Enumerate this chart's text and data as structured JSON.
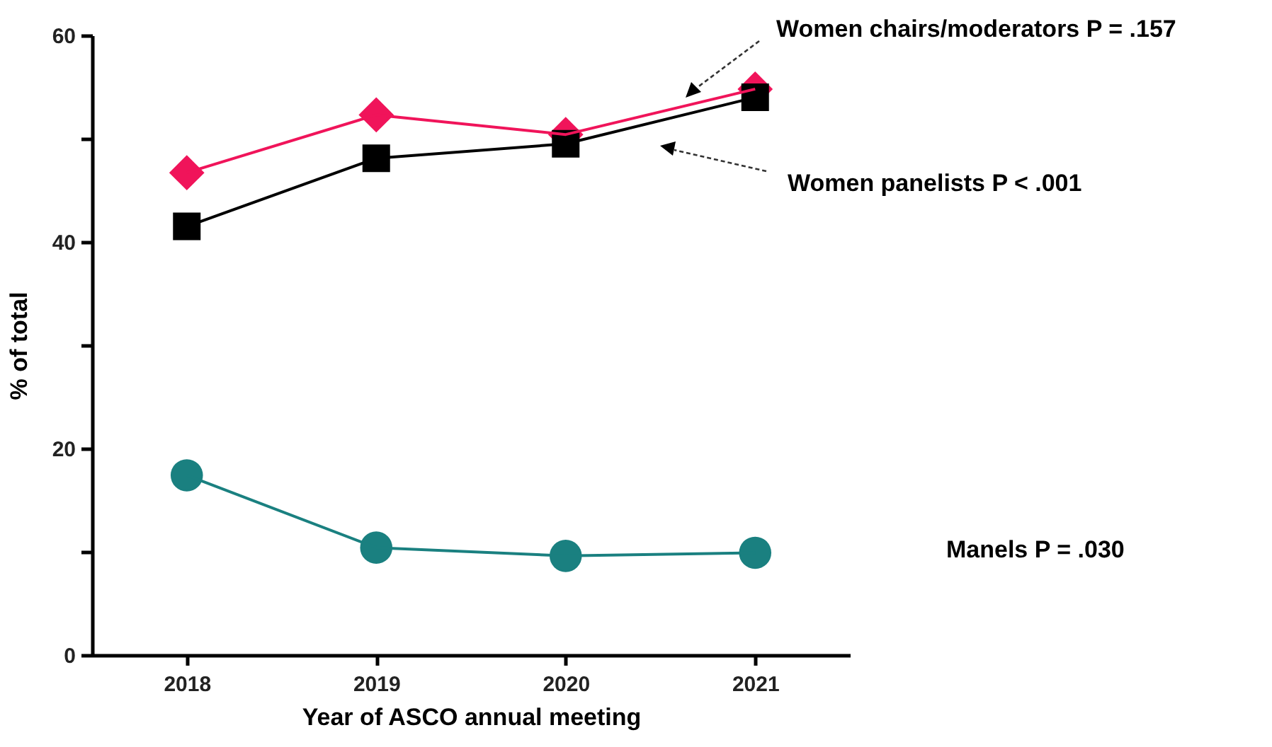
{
  "chart_data": {
    "type": "line",
    "xlabel": "Year of ASCO annual meeting",
    "ylabel": "% of total",
    "categories": [
      "2018",
      "2019",
      "2020",
      "2021"
    ],
    "ylim": [
      0,
      60
    ],
    "yticks": [
      0,
      {
        "value": 10,
        "label": null
      },
      20,
      {
        "value": 30,
        "label": null
      },
      40,
      {
        "value": 50,
        "label": null
      },
      60
    ],
    "series": [
      {
        "name": "Women chairs/moderators P = .157",
        "color": "#f0145a",
        "marker": "diamond",
        "values": [
          46.7,
          52.3,
          50.4,
          54.8
        ]
      },
      {
        "name": "Women panelists P < .001",
        "color": "#000000",
        "marker": "square",
        "values": [
          41.5,
          48.1,
          49.5,
          54.0
        ]
      },
      {
        "name": "Manels P = .030",
        "color": "#1a8080",
        "marker": "circle",
        "values": [
          17.4,
          10.4,
          9.6,
          9.9
        ]
      }
    ]
  }
}
